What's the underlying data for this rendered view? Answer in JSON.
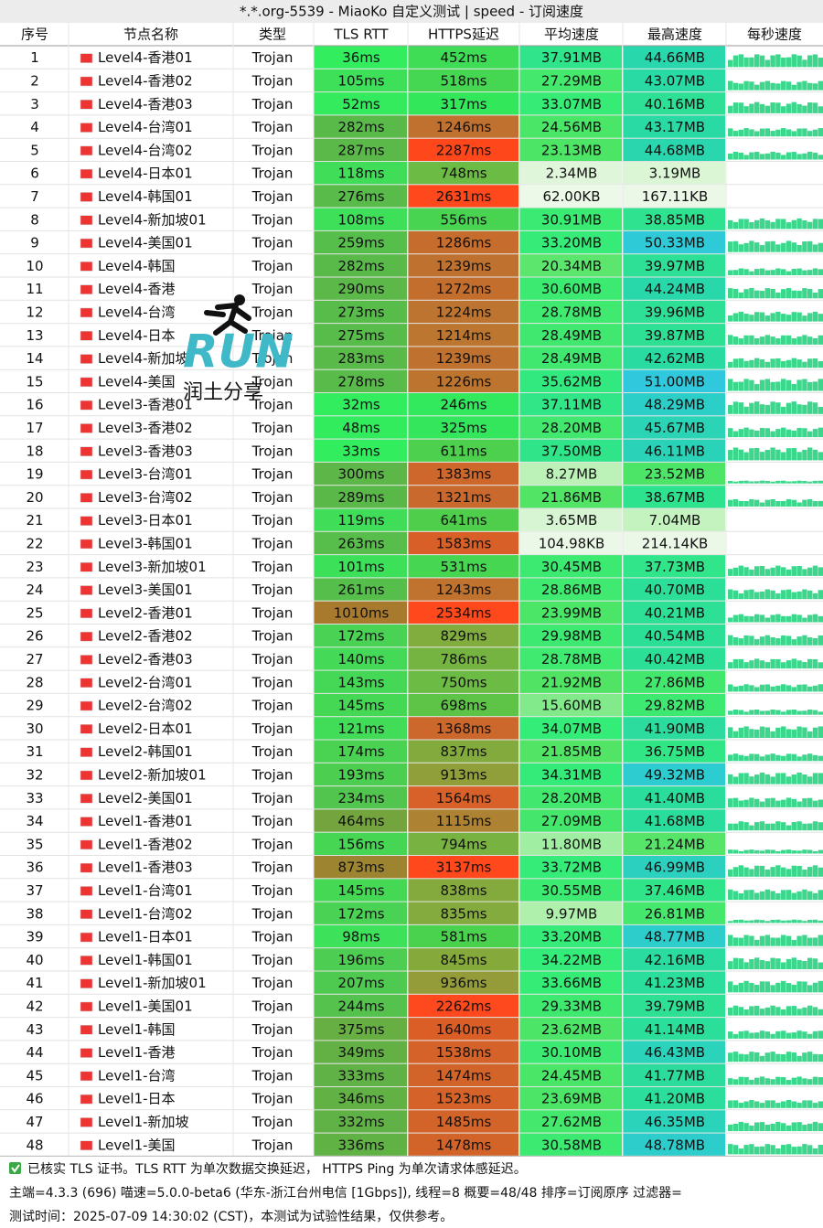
{
  "header": {
    "title": "*.*.org-5539 - MiaoKo 自定义测试 | speed - 订阅速度"
  },
  "table": {
    "columns": [
      "序号",
      "节点名称",
      "类型",
      "TLS RTT",
      "HTTPS延迟",
      "平均速度",
      "最高速度",
      "每秒速度"
    ],
    "rows": [
      [
        "1",
        "Level4-香港01",
        "Trojan",
        "36ms",
        "452ms",
        "37.91MB",
        "44.66MB"
      ],
      [
        "2",
        "Level4-香港02",
        "Trojan",
        "105ms",
        "518ms",
        "27.29MB",
        "43.07MB"
      ],
      [
        "3",
        "Level4-香港03",
        "Trojan",
        "52ms",
        "317ms",
        "33.07MB",
        "40.16MB"
      ],
      [
        "4",
        "Level4-台湾01",
        "Trojan",
        "282ms",
        "1246ms",
        "24.56MB",
        "43.17MB"
      ],
      [
        "5",
        "Level4-台湾02",
        "Trojan",
        "287ms",
        "2287ms",
        "23.13MB",
        "44.68MB"
      ],
      [
        "6",
        "Level4-日本01",
        "Trojan",
        "118ms",
        "748ms",
        "2.34MB",
        "3.19MB"
      ],
      [
        "7",
        "Level4-韩国01",
        "Trojan",
        "276ms",
        "2631ms",
        "62.00KB",
        "167.11KB"
      ],
      [
        "8",
        "Level4-新加坡01",
        "Trojan",
        "108ms",
        "556ms",
        "30.91MB",
        "38.85MB"
      ],
      [
        "9",
        "Level4-美国01",
        "Trojan",
        "259ms",
        "1286ms",
        "33.20MB",
        "50.33MB"
      ],
      [
        "10",
        "Level4-韩国",
        "Trojan",
        "282ms",
        "1239ms",
        "20.34MB",
        "39.97MB"
      ],
      [
        "11",
        "Level4-香港",
        "Trojan",
        "290ms",
        "1272ms",
        "30.60MB",
        "44.24MB"
      ],
      [
        "12",
        "Level4-台湾",
        "Trojan",
        "273ms",
        "1224ms",
        "28.78MB",
        "39.96MB"
      ],
      [
        "13",
        "Level4-日本",
        "Trojan",
        "275ms",
        "1214ms",
        "28.49MB",
        "39.87MB"
      ],
      [
        "14",
        "Level4-新加坡",
        "Trojan",
        "283ms",
        "1239ms",
        "28.49MB",
        "42.62MB"
      ],
      [
        "15",
        "Level4-美国",
        "Trojan",
        "278ms",
        "1226ms",
        "35.62MB",
        "51.00MB"
      ],
      [
        "16",
        "Level3-香港01",
        "Trojan",
        "32ms",
        "246ms",
        "37.11MB",
        "48.29MB"
      ],
      [
        "17",
        "Level3-香港02",
        "Trojan",
        "48ms",
        "325ms",
        "28.20MB",
        "45.67MB"
      ],
      [
        "18",
        "Level3-香港03",
        "Trojan",
        "33ms",
        "611ms",
        "37.50MB",
        "46.11MB"
      ],
      [
        "19",
        "Level3-台湾01",
        "Trojan",
        "300ms",
        "1383ms",
        "8.27MB",
        "23.52MB"
      ],
      [
        "20",
        "Level3-台湾02",
        "Trojan",
        "289ms",
        "1321ms",
        "21.86MB",
        "38.67MB"
      ],
      [
        "21",
        "Level3-日本01",
        "Trojan",
        "119ms",
        "641ms",
        "3.65MB",
        "7.04MB"
      ],
      [
        "22",
        "Level3-韩国01",
        "Trojan",
        "263ms",
        "1583ms",
        "104.98KB",
        "214.14KB"
      ],
      [
        "23",
        "Level3-新加坡01",
        "Trojan",
        "101ms",
        "531ms",
        "30.45MB",
        "37.73MB"
      ],
      [
        "24",
        "Level3-美国01",
        "Trojan",
        "261ms",
        "1243ms",
        "28.86MB",
        "40.70MB"
      ],
      [
        "25",
        "Level2-香港01",
        "Trojan",
        "1010ms",
        "2534ms",
        "23.99MB",
        "40.21MB"
      ],
      [
        "26",
        "Level2-香港02",
        "Trojan",
        "172ms",
        "829ms",
        "29.98MB",
        "40.54MB"
      ],
      [
        "27",
        "Level2-香港03",
        "Trojan",
        "140ms",
        "786ms",
        "28.78MB",
        "40.42MB"
      ],
      [
        "28",
        "Level2-台湾01",
        "Trojan",
        "143ms",
        "750ms",
        "21.92MB",
        "27.86MB"
      ],
      [
        "29",
        "Level2-台湾02",
        "Trojan",
        "145ms",
        "698ms",
        "15.60MB",
        "29.82MB"
      ],
      [
        "30",
        "Level2-日本01",
        "Trojan",
        "121ms",
        "1368ms",
        "34.07MB",
        "41.90MB"
      ],
      [
        "31",
        "Level2-韩国01",
        "Trojan",
        "174ms",
        "837ms",
        "21.85MB",
        "36.75MB"
      ],
      [
        "32",
        "Level2-新加坡01",
        "Trojan",
        "193ms",
        "913ms",
        "34.31MB",
        "49.32MB"
      ],
      [
        "33",
        "Level2-美国01",
        "Trojan",
        "234ms",
        "1564ms",
        "28.20MB",
        "41.40MB"
      ],
      [
        "34",
        "Level1-香港01",
        "Trojan",
        "464ms",
        "1115ms",
        "27.09MB",
        "41.68MB"
      ],
      [
        "35",
        "Level1-香港02",
        "Trojan",
        "156ms",
        "794ms",
        "11.80MB",
        "21.24MB"
      ],
      [
        "36",
        "Level1-香港03",
        "Trojan",
        "873ms",
        "3137ms",
        "33.72MB",
        "46.99MB"
      ],
      [
        "37",
        "Level1-台湾01",
        "Trojan",
        "145ms",
        "838ms",
        "30.55MB",
        "37.46MB"
      ],
      [
        "38",
        "Level1-台湾02",
        "Trojan",
        "172ms",
        "835ms",
        "9.97MB",
        "26.81MB"
      ],
      [
        "39",
        "Level1-日本01",
        "Trojan",
        "98ms",
        "581ms",
        "33.20MB",
        "48.77MB"
      ],
      [
        "40",
        "Level1-韩国01",
        "Trojan",
        "196ms",
        "845ms",
        "34.22MB",
        "42.16MB"
      ],
      [
        "41",
        "Level1-新加坡01",
        "Trojan",
        "207ms",
        "936ms",
        "33.66MB",
        "41.23MB"
      ],
      [
        "42",
        "Level1-美国01",
        "Trojan",
        "244ms",
        "2262ms",
        "29.33MB",
        "39.79MB"
      ],
      [
        "43",
        "Level1-韩国",
        "Trojan",
        "375ms",
        "1640ms",
        "23.62MB",
        "41.14MB"
      ],
      [
        "44",
        "Level1-香港",
        "Trojan",
        "349ms",
        "1538ms",
        "30.10MB",
        "46.43MB"
      ],
      [
        "45",
        "Level1-台湾",
        "Trojan",
        "333ms",
        "1474ms",
        "24.45MB",
        "41.77MB"
      ],
      [
        "46",
        "Level1-日本",
        "Trojan",
        "346ms",
        "1523ms",
        "23.69MB",
        "41.20MB"
      ],
      [
        "47",
        "Level1-新加坡",
        "Trojan",
        "332ms",
        "1485ms",
        "27.62MB",
        "46.35MB"
      ],
      [
        "48",
        "Level1-美国",
        "Trojan",
        "336ms",
        "1478ms",
        "30.58MB",
        "48.78MB"
      ]
    ]
  },
  "logo": {
    "text": "RUN",
    "subtitle": "润土分享"
  },
  "footer": [
    "已核实 TLS 证书。TLS RTT 为单次数据交换延迟，  HTTPS Ping 为单次请求体感延迟。",
    "主端=4.3.3 (696) 喵速=5.0.0-beta6 (华东-浙江台州电信 [1Gbps]), 线程=8 概要=48/48 排序=订阅原序 过滤器=",
    "测试时间：2025-07-09 14:30:02 (CST)，本测试为试验性结果，仅供参考。"
  ]
}
